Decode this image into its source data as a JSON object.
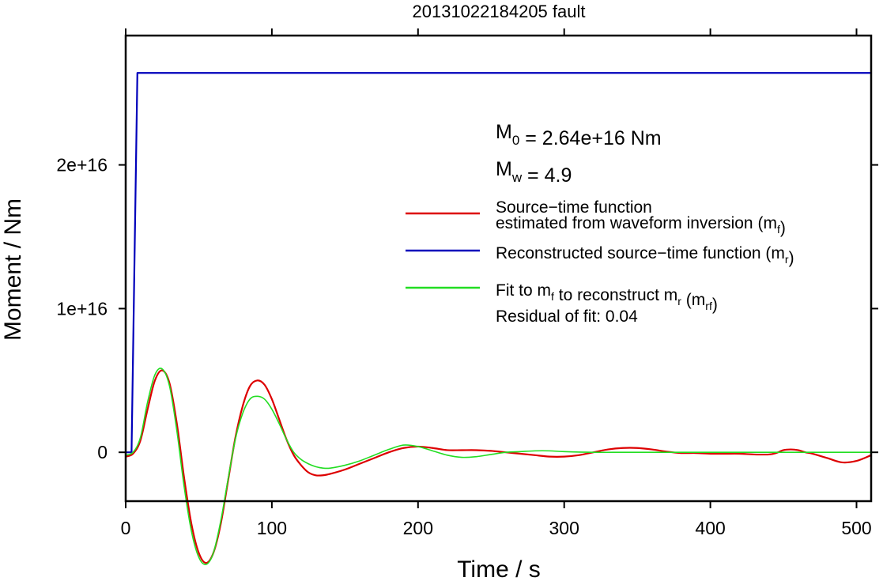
{
  "chart_data": {
    "type": "line",
    "title": "20131022184205 fault",
    "xlabel": "Time / s",
    "ylabel": "Moment / Nm",
    "xlim": [
      0,
      510
    ],
    "ylim": [
      -3400000000000000.0,
      2.9e+16
    ],
    "x_ticks": [
      0,
      100,
      200,
      300,
      400,
      500
    ],
    "x_tick_labels": [
      "0",
      "100",
      "200",
      "300",
      "400",
      "500"
    ],
    "y_ticks": [
      0,
      1e+16,
      2e+16
    ],
    "y_tick_labels": [
      "0",
      "1e+16",
      "2e+16"
    ],
    "grid": false,
    "legend_position": "right",
    "annotations": {
      "m0": {
        "symbol": "M",
        "sub": "0",
        "text": " = 2.64e+16 Nm"
      },
      "mw": {
        "symbol": "M",
        "sub": "w",
        "text": " = 4.9"
      },
      "residual": "Residual of fit: 0.04"
    },
    "legend": [
      {
        "color": "#dd0000",
        "lines": [
          {
            "parts": [
              "Source−time function"
            ]
          },
          {
            "parts": [
              "estimated from waveform inversion (m",
              {
                "sub": "f"
              },
              ")"
            ]
          }
        ]
      },
      {
        "color": "#0000bb",
        "lines": [
          {
            "parts": [
              "Reconstructed source−time function (m",
              {
                "sub": "r"
              },
              ")"
            ]
          }
        ]
      },
      {
        "color": "#22dd22",
        "lines": [
          {
            "parts": [
              "Fit to m",
              {
                "sub": "f"
              },
              " to reconstruct m",
              {
                "sub": "r"
              },
              " (m",
              {
                "sub": "rf"
              },
              ")"
            ]
          }
        ]
      }
    ],
    "series": [
      {
        "color": "#0000bb",
        "width": 2.2,
        "x": [
          0,
          4,
          8,
          510
        ],
        "y": [
          0,
          0,
          2.64e+16,
          2.64e+16
        ]
      },
      {
        "color": "#dd0000",
        "width": 2.2,
        "x": [
          0,
          5,
          10,
          15,
          20,
          25,
          30,
          35,
          40,
          45,
          50,
          55,
          60,
          65,
          70,
          75,
          80,
          85,
          90,
          95,
          100,
          105,
          110,
          115,
          120,
          125,
          130,
          135,
          140,
          150,
          160,
          170,
          180,
          190,
          200,
          210,
          220,
          230,
          240,
          250,
          260,
          270,
          280,
          290,
          300,
          310,
          320,
          330,
          340,
          350,
          360,
          370,
          380,
          390,
          400,
          410,
          420,
          430,
          440,
          445,
          450,
          455,
          460,
          465,
          470,
          480,
          490,
          500,
          510
        ],
        "y": [
          -300000000000000.0,
          -100000000000000.0,
          800000000000000.0,
          3000000000000000.0,
          5000000000000000.0,
          5700000000000000.0,
          4800000000000000.0,
          2000000000000000.0,
          -1800000000000000.0,
          -5000000000000000.0,
          -7000000000000000.0,
          -7700000000000000.0,
          -7000000000000000.0,
          -5000000000000000.0,
          -2000000000000000.0,
          1000000000000000.0,
          3200000000000000.0,
          4600000000000000.0,
          5000000000000000.0,
          4700000000000000.0,
          3700000000000000.0,
          2300000000000000.0,
          900000000000000.0,
          -200000000000000.0,
          -900000000000000.0,
          -1400000000000000.0,
          -1600000000000000.0,
          -1600000000000000.0,
          -1500000000000000.0,
          -1200000000000000.0,
          -800000000000000.0,
          -400000000000000.0,
          0,
          300000000000000.0,
          400000000000000.0,
          300000000000000.0,
          150000000000000.0,
          150000000000000.0,
          150000000000000.0,
          100000000000000.0,
          0,
          -100000000000000.0,
          -200000000000000.0,
          -300000000000000.0,
          -300000000000000.0,
          -200000000000000.0,
          0,
          200000000000000.0,
          300000000000000.0,
          300000000000000.0,
          200000000000000.0,
          50000000000000.0,
          -50000000000000.0,
          -50000000000000.0,
          -100000000000000.0,
          -100000000000000.0,
          -100000000000000.0,
          -150000000000000.0,
          -150000000000000.0,
          -50000000000000.0,
          150000000000000.0,
          200000000000000.0,
          150000000000000.0,
          0,
          -100000000000000.0,
          -400000000000000.0,
          -700000000000000.0,
          -600000000000000.0,
          -200000000000000.0
        ]
      },
      {
        "color": "#22dd22",
        "width": 1.6,
        "x": [
          0,
          5,
          10,
          15,
          20,
          25,
          30,
          35,
          40,
          45,
          50,
          55,
          60,
          65,
          70,
          75,
          80,
          85,
          90,
          95,
          100,
          105,
          110,
          115,
          120,
          125,
          130,
          135,
          140,
          150,
          160,
          170,
          180,
          190,
          200,
          210,
          220,
          230,
          240,
          250,
          260,
          270,
          280,
          290,
          300,
          320,
          340,
          360,
          380,
          400,
          450,
          510
        ],
        "y": [
          -200000000000000.0,
          0,
          1000000000000000.0,
          3500000000000000.0,
          5400000000000000.0,
          5800000000000000.0,
          4600000000000000.0,
          1500000000000000.0,
          -2400000000000000.0,
          -5500000000000000.0,
          -7300000000000000.0,
          -7800000000000000.0,
          -7000000000000000.0,
          -4800000000000000.0,
          -1900000000000000.0,
          900000000000000.0,
          2700000000000000.0,
          3700000000000000.0,
          3900000000000000.0,
          3700000000000000.0,
          3000000000000000.0,
          2000000000000000.0,
          900000000000000.0,
          0,
          -500000000000000.0,
          -800000000000000.0,
          -1000000000000000.0,
          -1100000000000000.0,
          -1100000000000000.0,
          -900000000000000.0,
          -600000000000000.0,
          -200000000000000.0,
          200000000000000.0,
          500000000000000.0,
          400000000000000.0,
          100000000000000.0,
          -200000000000000.0,
          -350000000000000.0,
          -300000000000000.0,
          -150000000000000.0,
          0,
          50000000000000.0,
          100000000000000.0,
          100000000000000.0,
          50000000000000.0,
          0,
          0,
          0,
          0,
          0,
          0,
          0
        ]
      }
    ]
  }
}
